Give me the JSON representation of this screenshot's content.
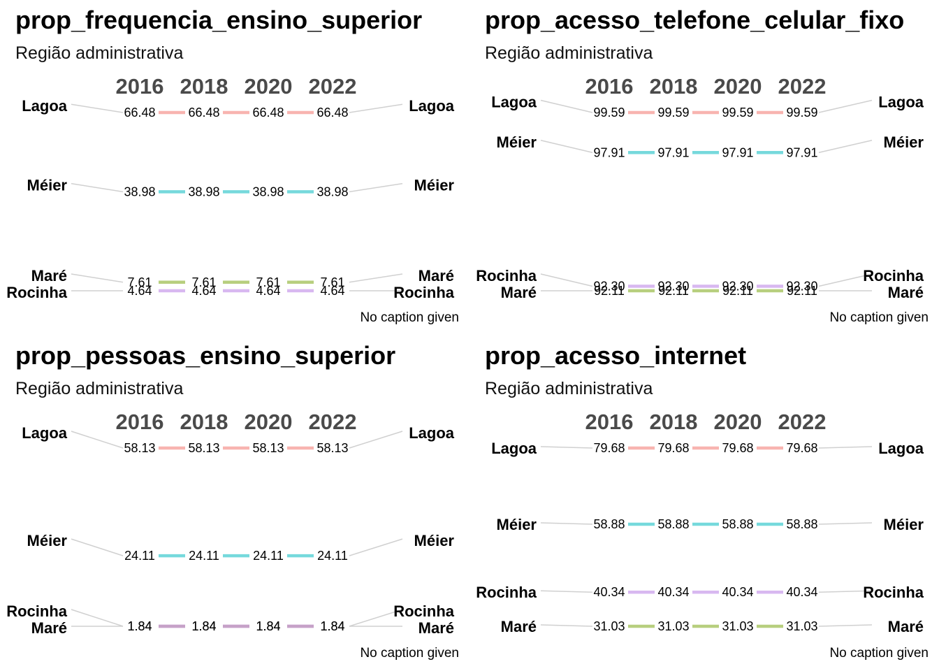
{
  "chart_data": [
    {
      "type": "line",
      "title": "prop_frequencia_ensino_superior",
      "subtitle": "Região administrativa",
      "caption": "No caption given",
      "x": [
        "2016",
        "2018",
        "2020",
        "2022"
      ],
      "series": [
        {
          "name": "Lagoa",
          "values": [
            66.48,
            66.48,
            66.48,
            66.48
          ],
          "labels": [
            "66.48",
            "66.48",
            "66.48",
            "66.48"
          ],
          "color": "#F8B4B0"
        },
        {
          "name": "Méier",
          "values": [
            38.98,
            38.98,
            38.98,
            38.98
          ],
          "labels": [
            "38.98",
            "38.98",
            "38.98",
            "38.98"
          ],
          "color": "#76D9DC"
        },
        {
          "name": "Maré",
          "values": [
            7.61,
            7.61,
            7.61,
            7.61
          ],
          "labels": [
            "7.61",
            "7.61",
            "7.61",
            "7.61"
          ],
          "color": "#B7CF7E"
        },
        {
          "name": "Rocinha",
          "values": [
            4.64,
            4.64,
            4.64,
            4.64
          ],
          "labels": [
            "4.64",
            "4.64",
            "4.64",
            "4.64"
          ],
          "color": "#D8B8F0"
        }
      ]
    },
    {
      "type": "line",
      "title": "prop_acesso_telefone_celular_fixo",
      "subtitle": "Região administrativa",
      "caption": "No caption given",
      "x": [
        "2016",
        "2018",
        "2020",
        "2022"
      ],
      "series": [
        {
          "name": "Lagoa",
          "values": [
            99.59,
            99.59,
            99.59,
            99.59
          ],
          "labels": [
            "99.59",
            "99.59",
            "99.59",
            "99.59"
          ],
          "color": "#F8B4B0"
        },
        {
          "name": "Méier",
          "values": [
            97.91,
            97.91,
            97.91,
            97.91
          ],
          "labels": [
            "97.91",
            "97.91",
            "97.91",
            "97.91"
          ],
          "color": "#76D9DC"
        },
        {
          "name": "Rocinha",
          "values": [
            92.3,
            92.3,
            92.3,
            92.3
          ],
          "labels": [
            "92.30",
            "92.30",
            "92.30",
            "92.30"
          ],
          "color": "#D8B8F0"
        },
        {
          "name": "Maré",
          "values": [
            92.11,
            92.11,
            92.11,
            92.11
          ],
          "labels": [
            "92.11",
            "92.11",
            "92.11",
            "92.11"
          ],
          "color": "#B7CF7E"
        }
      ]
    },
    {
      "type": "line",
      "title": "prop_pessoas_ensino_superior",
      "subtitle": "Região administrativa",
      "caption": "No caption given",
      "x": [
        "2016",
        "2018",
        "2020",
        "2022"
      ],
      "series": [
        {
          "name": "Lagoa",
          "values": [
            58.13,
            58.13,
            58.13,
            58.13
          ],
          "labels": [
            "58.13",
            "58.13",
            "58.13",
            "58.13"
          ],
          "color": "#F8B4B0"
        },
        {
          "name": "Méier",
          "values": [
            24.11,
            24.11,
            24.11,
            24.11
          ],
          "labels": [
            "24.11",
            "24.11",
            "24.11",
            "24.11"
          ],
          "color": "#76D9DC"
        },
        {
          "name": "Rocinha",
          "values": [
            1.84,
            1.84,
            1.84,
            1.84
          ],
          "labels": [
            "1.84",
            "1.84",
            "1.84",
            "1.84"
          ],
          "color": "#D8B8F0"
        },
        {
          "name": "Maré",
          "values": [
            1.84,
            1.84,
            1.84,
            1.84
          ],
          "labels": [
            "1.84",
            "1.84",
            "1.84",
            "1.84"
          ],
          "color": "#C6A2C8"
        }
      ]
    },
    {
      "type": "line",
      "title": "prop_acesso_internet",
      "subtitle": "Região administrativa",
      "caption": "No caption given",
      "x": [
        "2016",
        "2018",
        "2020",
        "2022"
      ],
      "series": [
        {
          "name": "Lagoa",
          "values": [
            79.68,
            79.68,
            79.68,
            79.68
          ],
          "labels": [
            "79.68",
            "79.68",
            "79.68",
            "79.68"
          ],
          "color": "#F8B4B0"
        },
        {
          "name": "Méier",
          "values": [
            58.88,
            58.88,
            58.88,
            58.88
          ],
          "labels": [
            "58.88",
            "58.88",
            "58.88",
            "58.88"
          ],
          "color": "#76D9DC"
        },
        {
          "name": "Rocinha",
          "values": [
            40.34,
            40.34,
            40.34,
            40.34
          ],
          "labels": [
            "40.34",
            "40.34",
            "40.34",
            "40.34"
          ],
          "color": "#D8B8F0"
        },
        {
          "name": "Maré",
          "values": [
            31.03,
            31.03,
            31.03,
            31.03
          ],
          "labels": [
            "31.03",
            "31.03",
            "31.03",
            "31.03"
          ],
          "color": "#B7CF7E"
        }
      ]
    }
  ]
}
